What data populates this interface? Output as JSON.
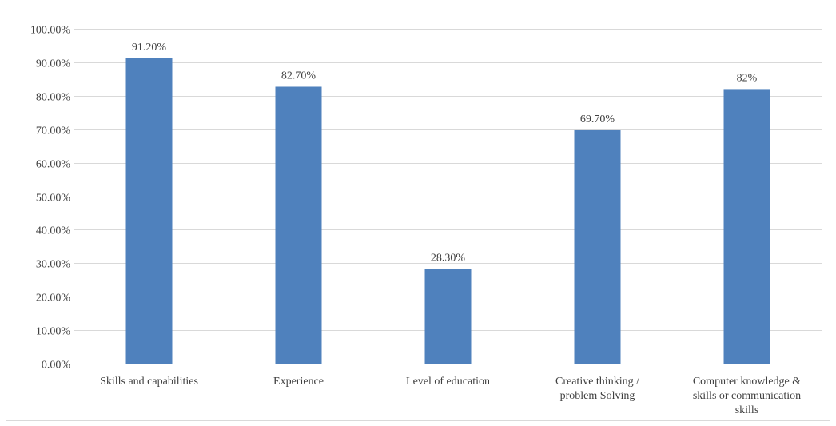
{
  "chart_data": {
    "type": "bar",
    "title": "",
    "xlabel": "",
    "ylabel": "",
    "categories": [
      [
        "Skills and capabilities"
      ],
      [
        "Experience"
      ],
      [
        "Level of education"
      ],
      [
        "Creative thinking /",
        "problem Solving"
      ],
      [
        "Computer knowledge &",
        "skills or communication",
        "skills"
      ]
    ],
    "values": [
      91.2,
      82.7,
      28.3,
      69.7,
      82
    ],
    "data_labels": [
      "91.20%",
      "82.70%",
      "28.30%",
      "69.70%",
      "82%"
    ],
    "ylim": [
      0,
      100
    ],
    "y_ticks": [
      0,
      10,
      20,
      30,
      40,
      50,
      60,
      70,
      80,
      90,
      100
    ],
    "y_tick_labels": [
      "0.00%",
      "10.00%",
      "20.00%",
      "30.00%",
      "40.00%",
      "50.00%",
      "60.00%",
      "70.00%",
      "80.00%",
      "90.00%",
      "100.00%"
    ],
    "grid": true,
    "legend": "none",
    "colors": {
      "bar": "#4f81bd",
      "grid": "#d9d9d9",
      "text": "#404040"
    }
  }
}
